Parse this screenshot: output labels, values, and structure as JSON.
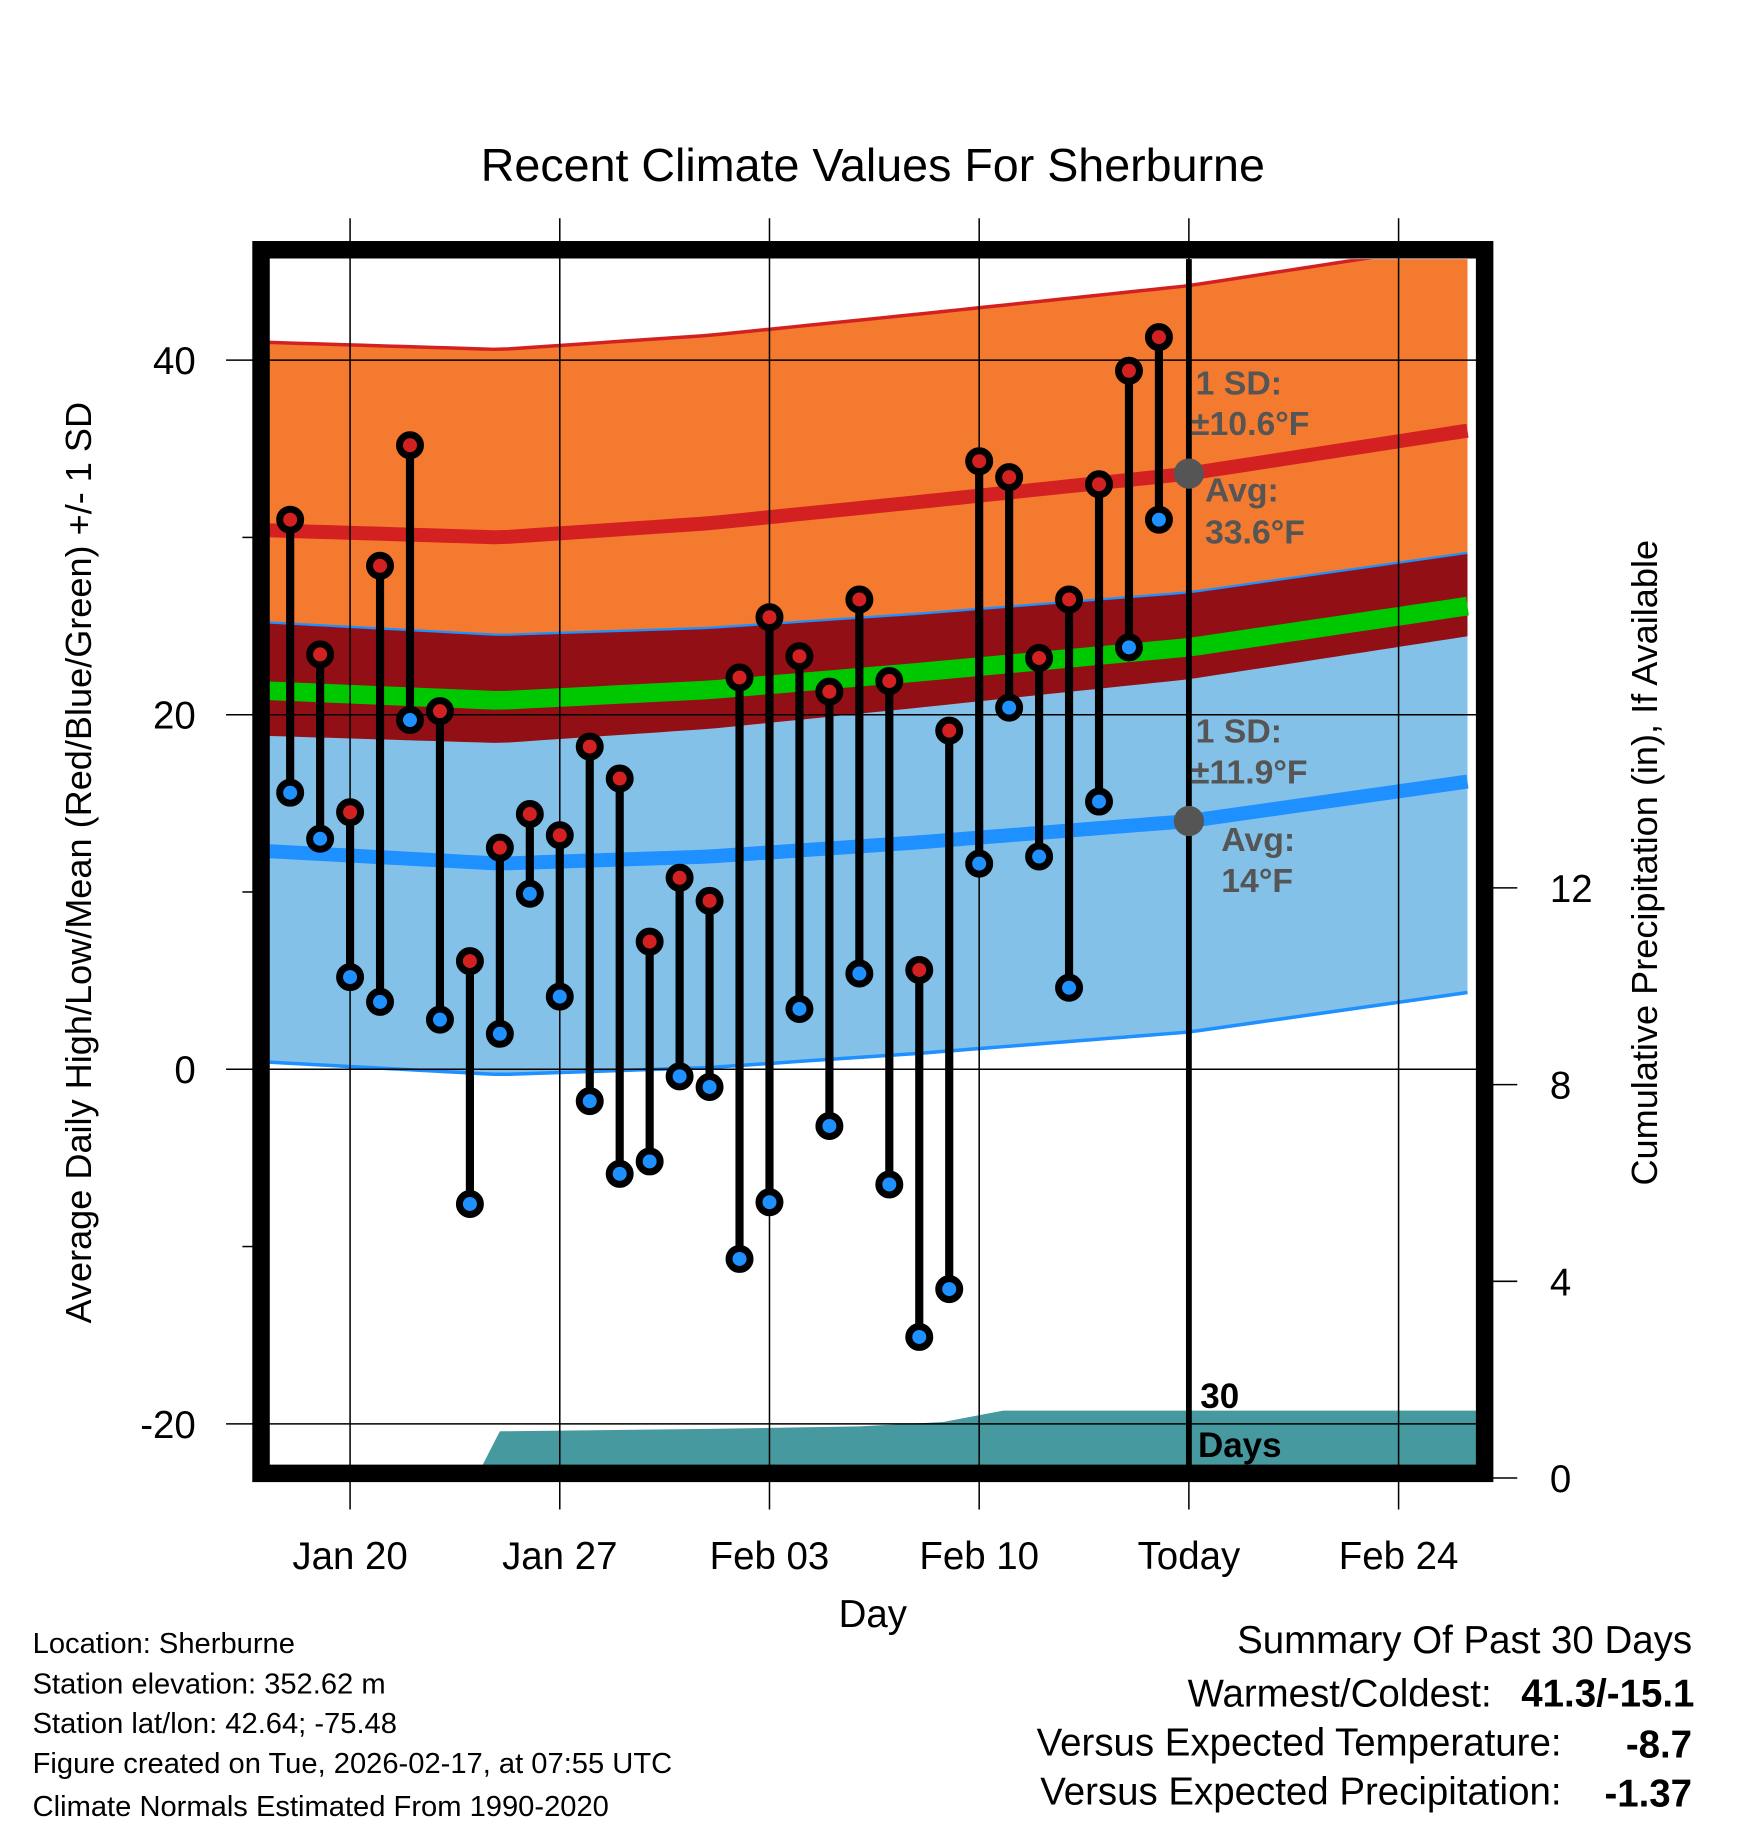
{
  "chart_data": {
    "type": "line",
    "title": "Recent Climate Values For Sherburne",
    "xlabel": "Day",
    "ylabel": "Average Daily High/Low/Mean (Red/Blue/Green) +/- 1 SD",
    "ylabel_right": "Cumulative Precipitation (in), If Available",
    "x_tick_labels": [
      "Jan 20",
      "Jan 27",
      "Feb 03",
      "Feb 10",
      "Today",
      "Feb 24"
    ],
    "x_tick_day_offsets": [
      0,
      7,
      14,
      21,
      28,
      35
    ],
    "xlim_day_offsets": [
      -2.7,
      37.6
    ],
    "y_ticks": [
      -20,
      0,
      20,
      40
    ],
    "ylim": [
      -22.4,
      45.7
    ],
    "y_right_ticks": [
      0,
      4,
      8,
      12
    ],
    "grid": true,
    "observed": {
      "dates": [
        "Jan 18",
        "Jan 19",
        "Jan 20",
        "Jan 21",
        "Jan 22",
        "Jan 23",
        "Jan 24",
        "Jan 25",
        "Jan 26",
        "Jan 27",
        "Jan 28",
        "Jan 29",
        "Jan 30",
        "Jan 31",
        "Feb 01",
        "Feb 02",
        "Feb 03",
        "Feb 04",
        "Feb 05",
        "Feb 06",
        "Feb 07",
        "Feb 08",
        "Feb 09",
        "Feb 10",
        "Feb 11",
        "Feb 12",
        "Feb 13",
        "Feb 14",
        "Feb 15",
        "Feb 16"
      ],
      "high": [
        31.0,
        23.4,
        14.5,
        28.4,
        35.2,
        20.2,
        6.1,
        12.5,
        14.4,
        13.2,
        18.2,
        16.4,
        7.2,
        10.8,
        9.5,
        22.1,
        25.5,
        23.3,
        21.3,
        26.5,
        21.9,
        5.6,
        19.1,
        34.3,
        33.4,
        23.2,
        26.5,
        33.0,
        39.4,
        41.3
      ],
      "low": [
        15.6,
        13.0,
        5.2,
        3.8,
        19.7,
        2.8,
        -7.6,
        2.0,
        9.9,
        4.1,
        -1.8,
        -5.9,
        -5.2,
        -0.4,
        -1.0,
        -10.7,
        -7.5,
        3.4,
        -3.2,
        5.4,
        -6.5,
        -15.1,
        -12.4,
        11.6,
        20.4,
        12.0,
        4.6,
        15.1,
        23.8,
        31.0
      ]
    },
    "normals": {
      "day_offsets": [
        -2.7,
        5,
        12,
        19,
        28,
        37.6
      ],
      "avg_high": [
        30.4,
        30.0,
        30.8,
        32.0,
        33.6,
        36.1
      ],
      "avg_low": [
        12.3,
        11.6,
        12.0,
        12.8,
        14.0,
        16.3
      ],
      "high_sd": 10.6,
      "low_sd": 11.9
    },
    "precipitation": {
      "day_offsets": [
        4.2,
        5.0,
        12,
        17,
        19.8,
        21.8,
        37.6
      ],
      "cumulative_in": [
        0,
        0.95,
        1.0,
        1.05,
        1.14,
        1.37,
        1.37
      ]
    },
    "annotations": {
      "high_sd_label": "1 SD:",
      "high_sd_value": "±10.6°F",
      "high_avg_label": "Avg:",
      "high_avg_value": "33.6°F",
      "low_sd_label": "1 SD:",
      "low_sd_value": "±11.9°F",
      "low_avg_label": "Avg:",
      "low_avg_value": "14°F",
      "days_num": "30",
      "days_word": "Days"
    },
    "colors": {
      "orange_band": "#f47a2f",
      "high_line": "#d32121",
      "overlap": "#920f16",
      "mean": "#00c800",
      "blue_band": "#83c1e8",
      "low_line": "#1e90ff",
      "precip": "#45999f"
    }
  },
  "info": {
    "location": "Location: Sherburne",
    "elevation": "Station elevation: 352.62 m",
    "latlon": "Station lat/lon: 42.64; -75.48",
    "created": "Figure created on Tue, 2026-02-17, at 07:55 UTC",
    "normals": "Climate Normals Estimated From 1990-2020"
  },
  "summary": {
    "title": "Summary Of Past 30 Days",
    "warm_cold_label": "Warmest/Coldest:",
    "warm_cold_value": "41.3/-15.1",
    "temp_label": "Versus Expected Temperature:",
    "temp_value": "-8.7",
    "temp_color": "#1e90ff",
    "precip_label": "Versus Expected Precipitation:",
    "precip_value": "-1.37",
    "precip_color": "#a0522d"
  }
}
